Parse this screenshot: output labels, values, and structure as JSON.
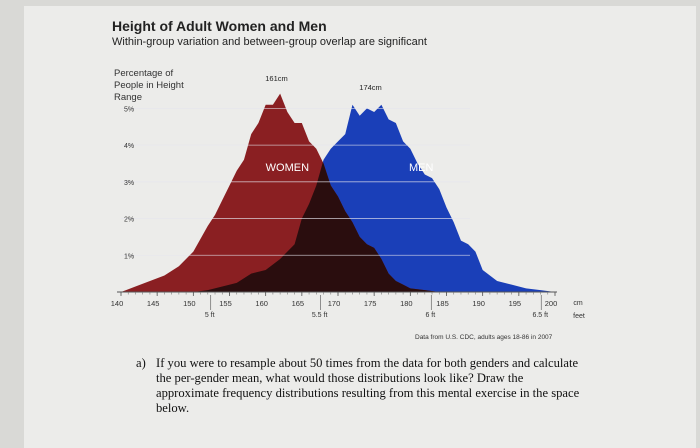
{
  "chart_data": {
    "type": "area",
    "title": "Height of Adult Women and Men",
    "subtitle": "Within-group variation and between-group overlap are significant",
    "ylabel": "Percentage of People in Height Range",
    "xlabel": "",
    "x_unit_primary": "cm",
    "x_unit_secondary": "feet",
    "xlim": [
      140,
      200
    ],
    "ylim": [
      0,
      5.5
    ],
    "x_ticks": [
      140,
      145,
      150,
      155,
      160,
      165,
      170,
      175,
      180,
      185,
      190,
      195,
      200
    ],
    "x_ticks_feet": [
      {
        "value": 152.4,
        "label": "5 ft"
      },
      {
        "value": 167.6,
        "label": "5.5 ft"
      },
      {
        "value": 182.9,
        "label": "6 ft"
      },
      {
        "value": 198.1,
        "label": "6.5 ft"
      }
    ],
    "y_ticks": [
      {
        "value": 1,
        "label": "1%"
      },
      {
        "value": 2,
        "label": "2%"
      },
      {
        "value": 3,
        "label": "3%"
      },
      {
        "value": 4,
        "label": "4%"
      },
      {
        "value": 5,
        "label": "5%"
      }
    ],
    "grid": true,
    "series": [
      {
        "name": "WOMEN",
        "peak_label": "161cm",
        "color": "#8a1f22",
        "x": [
          140,
          142,
          144,
          146,
          148,
          150,
          152,
          153,
          154,
          155,
          156,
          157,
          158,
          159,
          160,
          161,
          162,
          163,
          164,
          165,
          166,
          167,
          168,
          169,
          170,
          171,
          172,
          173,
          174,
          175,
          176,
          177,
          178,
          179,
          180,
          182,
          184,
          186
        ],
        "y": [
          0,
          0.15,
          0.3,
          0.45,
          0.7,
          1.1,
          1.8,
          2.1,
          2.5,
          2.9,
          3.3,
          3.6,
          4.3,
          4.6,
          5.1,
          5.1,
          5.4,
          4.9,
          4.6,
          4.6,
          4.1,
          3.9,
          3.5,
          2.9,
          2.6,
          2.2,
          1.9,
          1.5,
          1.3,
          1.2,
          0.9,
          0.5,
          0.3,
          0.2,
          0.1,
          0.05,
          0,
          0
        ]
      },
      {
        "name": "MEN",
        "peak_label": "174cm",
        "color": "#1a3fb8",
        "x": [
          150,
          152,
          154,
          156,
          158,
          160,
          162,
          164,
          165,
          166,
          167,
          168,
          169,
          170,
          171,
          172,
          173,
          174,
          175,
          176,
          177,
          178,
          179,
          180,
          181,
          182,
          183,
          184,
          185,
          186,
          187,
          188,
          189,
          190,
          192,
          194,
          196,
          198,
          200
        ],
        "y": [
          0,
          0.05,
          0.15,
          0.25,
          0.5,
          0.6,
          0.9,
          1.3,
          2.0,
          2.4,
          2.9,
          3.6,
          3.9,
          4.1,
          4.3,
          5.1,
          4.8,
          5.0,
          4.9,
          5.1,
          4.7,
          4.6,
          4.1,
          3.9,
          3.5,
          3.2,
          3.1,
          2.8,
          2.3,
          1.9,
          1.4,
          1.3,
          1.1,
          0.6,
          0.3,
          0.2,
          0.1,
          0.05,
          0
        ]
      }
    ],
    "overlap_color": "#2a0d0e"
  },
  "source_note": "Data from U.S. CDC, adults ages 18-86 in 2007",
  "question": {
    "marker": "a)",
    "text": "If you were to resample about 50 times from the data for both genders and calculate the per-gender mean, what would those distributions look like? Draw the approximate frequency distributions resulting from this mental exercise in the space below."
  }
}
